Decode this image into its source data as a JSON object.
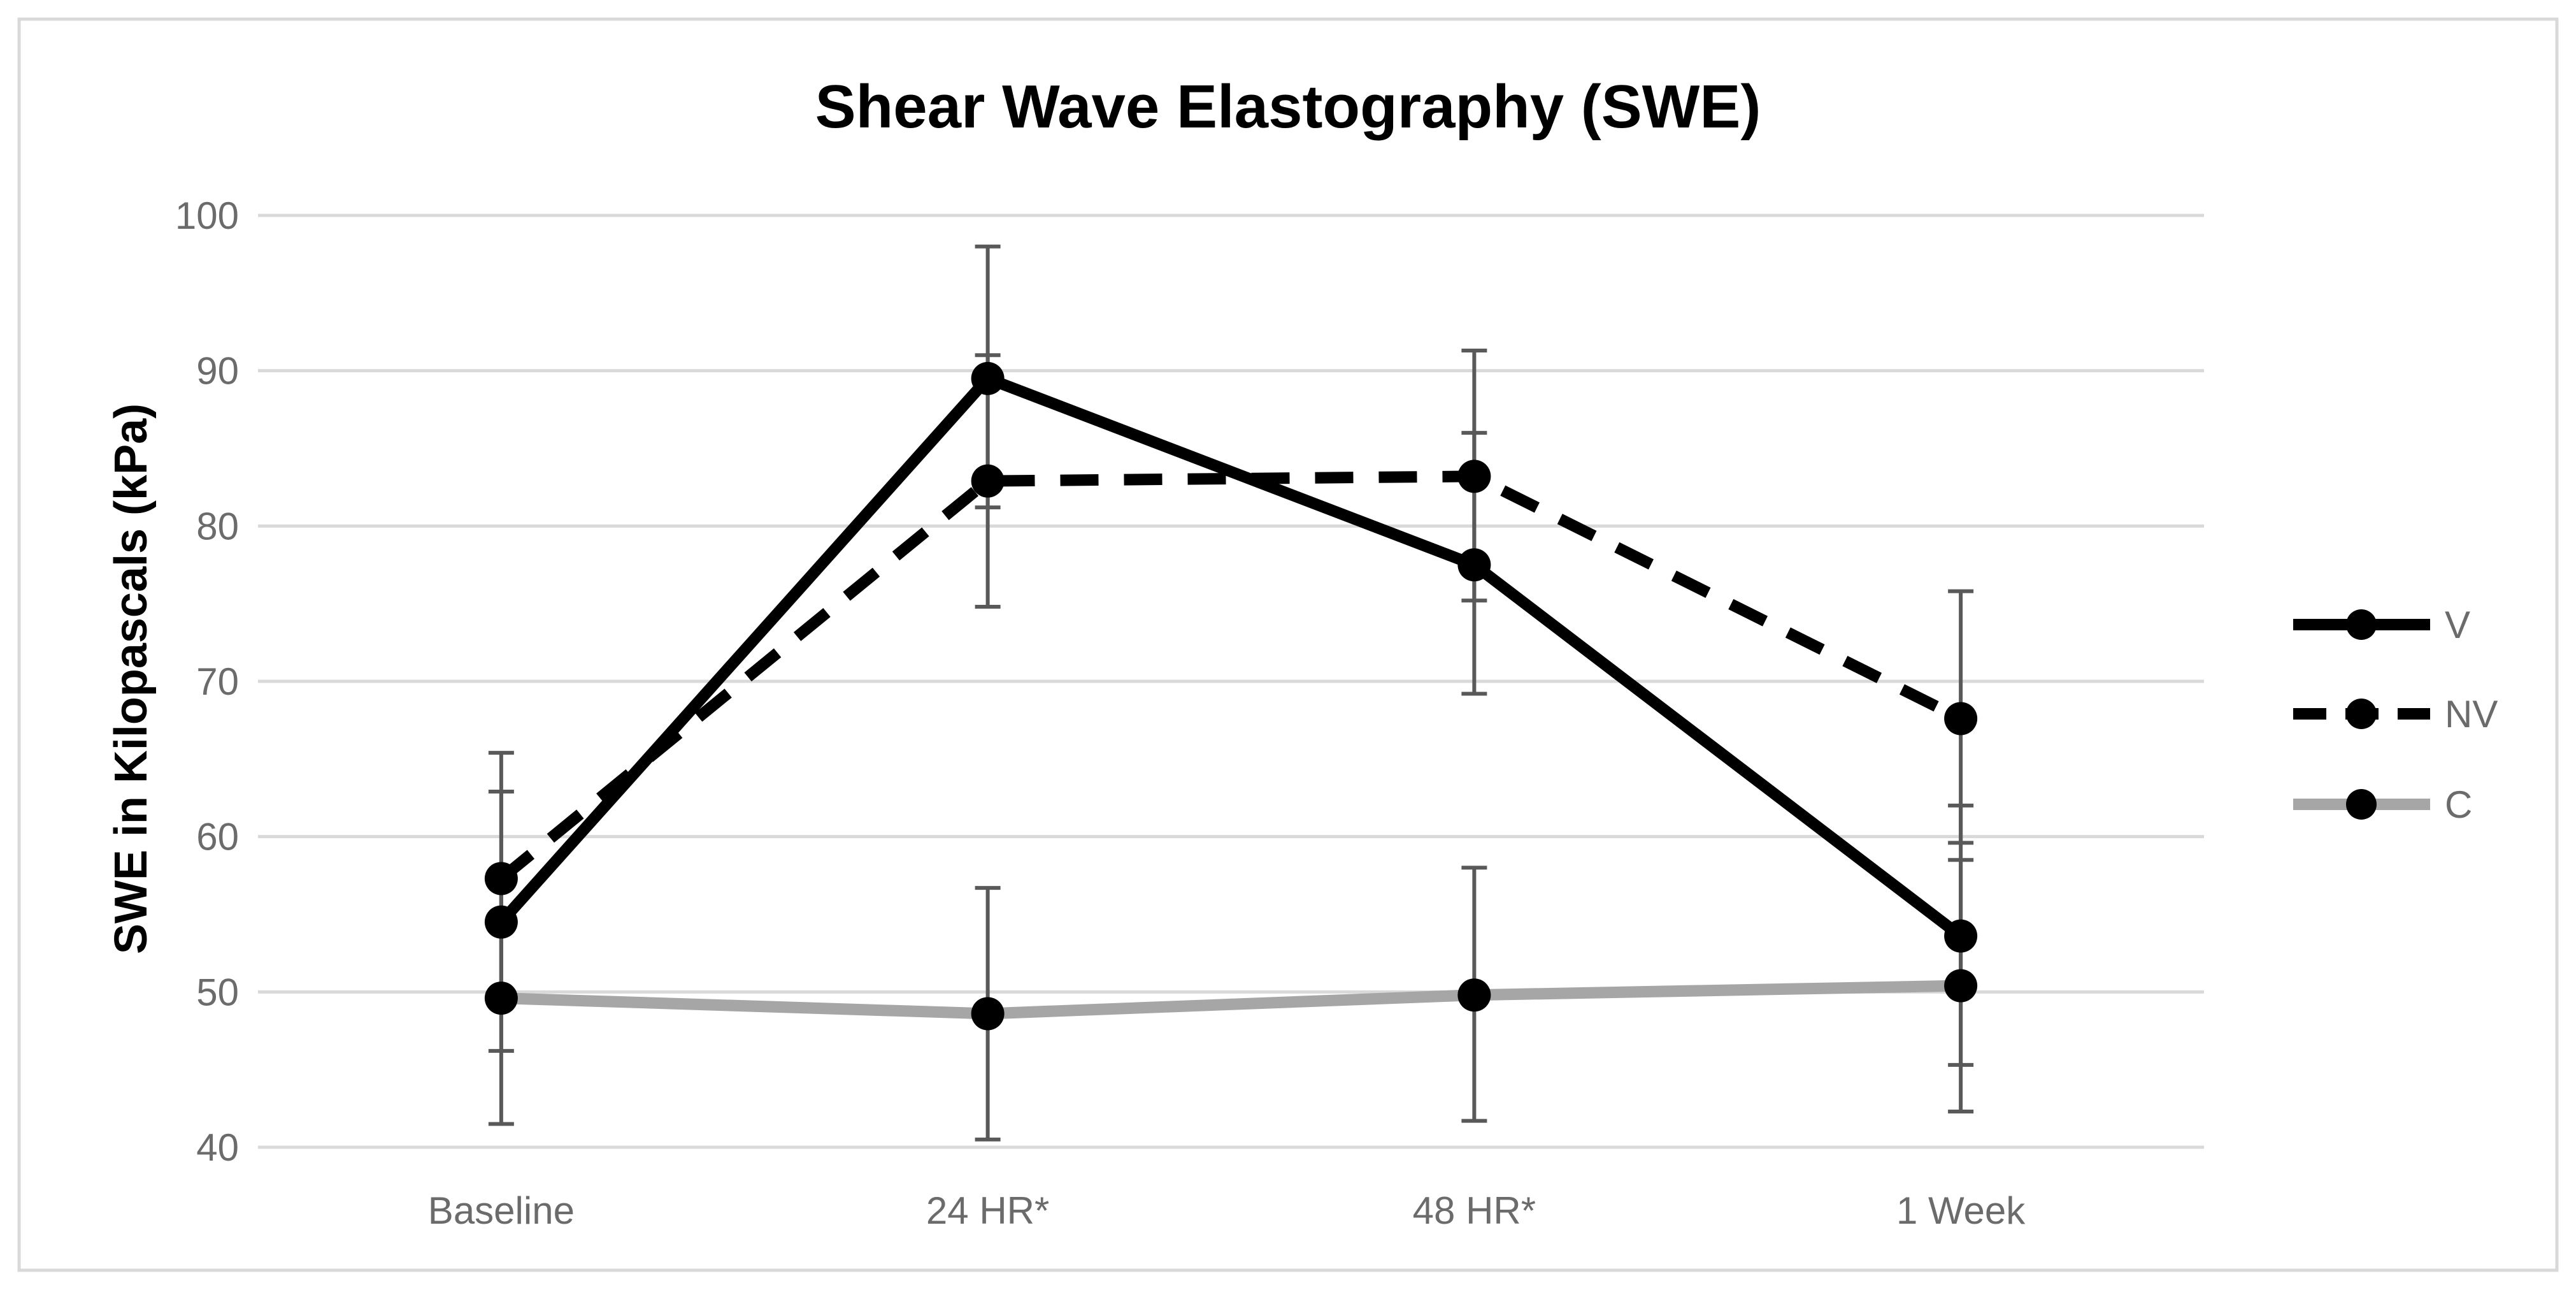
{
  "chart_data": {
    "type": "line",
    "title": "Shear Wave Elastography (SWE)",
    "xlabel": "",
    "ylabel": "SWE in Kilopascals (kPa)",
    "ylim": [
      40,
      100
    ],
    "yticks": [
      40,
      50,
      60,
      70,
      80,
      90,
      100
    ],
    "ytick_labels": [
      "40",
      "50",
      "60",
      "70",
      "80",
      "90",
      "100"
    ],
    "grid": true,
    "legend_position": "right",
    "categories": [
      "Baseline",
      "24 HR*",
      "48 HR*",
      "1 Week"
    ],
    "series": [
      {
        "name": "V",
        "values": [
          54.5,
          89.5,
          77.5,
          53.6
        ],
        "error_low": [
          46.2,
          81.2,
          69.2,
          45.3
        ],
        "error_high": [
          62.9,
          98.0,
          86.0,
          62.0
        ],
        "color": "#000000",
        "dashed": false
      },
      {
        "name": "NV",
        "values": [
          57.3,
          82.9,
          83.2,
          67.6
        ],
        "error_low": [
          49.2,
          74.8,
          75.2,
          59.6
        ],
        "error_high": [
          65.4,
          91.0,
          91.3,
          75.8
        ],
        "color": "#000000",
        "dashed": true
      },
      {
        "name": "C",
        "values": [
          49.6,
          48.6,
          49.8,
          50.4
        ],
        "error_low": [
          41.5,
          40.5,
          41.7,
          42.3
        ],
        "error_high": [
          57.7,
          56.7,
          58.0,
          58.5
        ],
        "color": "#a6a6a6",
        "dashed": false
      }
    ]
  }
}
